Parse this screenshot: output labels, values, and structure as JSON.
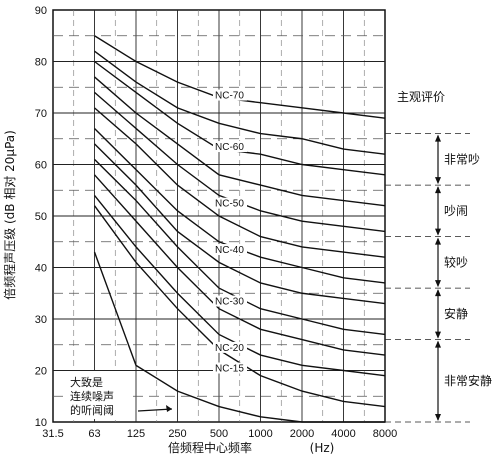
{
  "chart_data": {
    "type": "line",
    "xlabel": "倍频程中心频率",
    "xunit": "(Hz)",
    "ylabel": "倍频程声压级 (dB 相对 20μPa)",
    "x_ticks": [
      "31.5",
      "63",
      "125",
      "250",
      "500",
      "1000",
      "2000",
      "4000",
      "8000"
    ],
    "y_ticks": [
      10,
      20,
      30,
      40,
      50,
      60,
      70,
      80,
      90
    ],
    "ylim": [
      10,
      90
    ],
    "x": [
      "63",
      "125",
      "250",
      "500",
      "1000",
      "2000",
      "4000",
      "8000"
    ],
    "series": [
      {
        "name": "NC-70",
        "values": [
          85,
          80,
          76,
          73,
          72,
          71,
          70,
          69
        ]
      },
      {
        "name": "",
        "values": [
          82,
          76,
          71,
          68,
          66,
          65,
          63,
          62
        ]
      },
      {
        "name": "NC-60",
        "values": [
          80,
          74,
          68,
          63,
          62,
          60,
          59,
          58
        ]
      },
      {
        "name": "",
        "values": [
          77,
          70,
          64,
          58,
          56,
          54,
          53,
          52
        ]
      },
      {
        "name": "NC-50",
        "values": [
          74,
          67,
          60,
          54,
          51,
          49,
          48,
          47
        ]
      },
      {
        "name": "",
        "values": [
          71,
          64,
          56,
          50,
          46,
          44,
          43,
          42
        ]
      },
      {
        "name": "NC-40",
        "values": [
          67,
          59,
          51,
          45,
          42,
          40,
          38,
          37
        ]
      },
      {
        "name": "",
        "values": [
          64,
          56,
          47,
          41,
          37,
          35,
          34,
          33
        ]
      },
      {
        "name": "NC-30",
        "values": [
          61,
          53,
          44,
          36,
          32,
          30,
          28,
          27
        ]
      },
      {
        "name": "",
        "values": [
          58,
          49,
          40,
          32,
          28,
          26,
          24,
          23
        ]
      },
      {
        "name": "NC-20",
        "values": [
          54,
          44,
          35,
          27,
          23,
          21,
          20,
          19
        ]
      },
      {
        "name": "NC-15",
        "values": [
          52,
          41,
          32,
          24,
          19,
          16,
          14,
          13
        ]
      },
      {
        "name": "",
        "values": [
          43,
          21,
          16,
          13,
          11,
          10,
          10,
          10
        ]
      }
    ],
    "grid": true,
    "evaluation_title": "主观评价",
    "evaluation_bands": [
      {
        "label": "非常吵",
        "from": 56,
        "to": 66
      },
      {
        "label": "吵闹",
        "from": 46,
        "to": 56
      },
      {
        "label": "较吵",
        "from": 36,
        "to": 46
      },
      {
        "label": "安静",
        "from": 26,
        "to": 36
      },
      {
        "label": "非常安静",
        "from": 10,
        "to": 26
      }
    ],
    "annotation_lines": [
      "大致是",
      "连续噪声",
      "的听闻阈"
    ]
  }
}
